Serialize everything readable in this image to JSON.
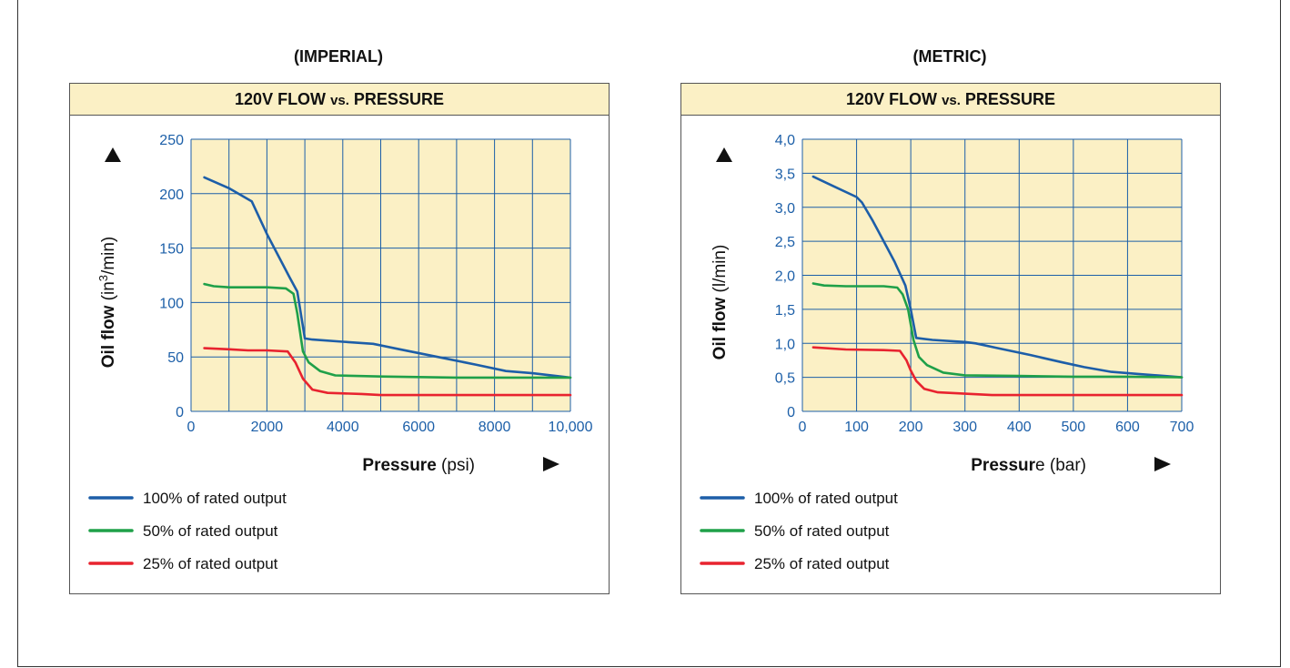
{
  "panels": [
    {
      "section_title": "(IMPERIAL)",
      "header_main": "120V FLOW ",
      "header_vs": "vs.",
      "header_end": " PRESSURE",
      "ylabel_bold": "Oil flow",
      "ylabel_unit_pre": " (in",
      "ylabel_unit_sup": "3",
      "ylabel_unit_post": "/min)",
      "xlabel_bold": "Pressure",
      "xlabel_unit": " (psi)",
      "x_ticks": [
        "0",
        "2000",
        "4000",
        "6000",
        "8000",
        "10,000"
      ],
      "y_ticks": [
        "0",
        "50",
        "100",
        "150",
        "200",
        "250"
      ],
      "legend": [
        "100% of rated output",
        "50% of rated output",
        "25% of rated output"
      ]
    },
    {
      "section_title": "(METRIC)",
      "header_main": "120V FLOW ",
      "header_vs": "vs.",
      "header_end": " PRESSURE",
      "ylabel_bold": "Oil flow",
      "ylabel_unit_pre": " (l/min)",
      "ylabel_unit_sup": "",
      "ylabel_unit_post": "",
      "xlabel_bold": "Pressur",
      "xlabel_unit": "e (bar)",
      "x_ticks": [
        "0",
        "100",
        "200",
        "300",
        "400",
        "500",
        "600",
        "700"
      ],
      "y_ticks": [
        "0",
        "0,5",
        "1,0",
        "1,5",
        "2,0",
        "2,5",
        "3,0",
        "3,5",
        "4,0"
      ],
      "legend": [
        "100% of rated output",
        "50% of rated output",
        "25% of rated output"
      ]
    }
  ],
  "colors": {
    "plot_bg": "#fbf0c5",
    "grid": "#1c5fa8",
    "series": [
      "#1d5ea8",
      "#1fa049",
      "#e8232f"
    ]
  },
  "chart_data": [
    {
      "type": "line",
      "title": "120V FLOW vs. PRESSURE",
      "xlabel": "Pressure (psi)",
      "ylabel": "Oil flow (in3/min)",
      "xlim": [
        0,
        10000
      ],
      "ylim": [
        0,
        250
      ],
      "grid": true,
      "legend_position": "bottom-left",
      "series": [
        {
          "name": "100% of rated output",
          "x": [
            350,
            1000,
            1600,
            2000,
            2300,
            2600,
            2800,
            3000,
            3200,
            4000,
            4800,
            5500,
            6500,
            7500,
            8300,
            9000,
            10000
          ],
          "y": [
            215,
            205,
            193,
            163,
            143,
            123,
            110,
            67,
            66,
            64,
            62,
            57,
            50,
            43,
            37,
            35,
            31
          ]
        },
        {
          "name": "50% of rated output",
          "x": [
            350,
            600,
            1000,
            2000,
            2500,
            2700,
            2800,
            2950,
            3100,
            3400,
            3800,
            5000,
            7000,
            8500,
            10000
          ],
          "y": [
            117,
            115,
            114,
            114,
            113,
            108,
            90,
            55,
            45,
            37,
            33,
            32,
            31,
            31,
            31
          ]
        },
        {
          "name": "25% of rated output",
          "x": [
            350,
            1000,
            1500,
            2000,
            2550,
            2750,
            2950,
            3200,
            3600,
            4500,
            5000,
            7000,
            10000
          ],
          "y": [
            58,
            57,
            56,
            56,
            55,
            45,
            30,
            20,
            17,
            16,
            15,
            15,
            15
          ]
        }
      ]
    },
    {
      "type": "line",
      "title": "120V FLOW vs. PRESSURE",
      "xlabel": "Pressure (bar)",
      "ylabel": "Oil flow (l/min)",
      "xlim": [
        0,
        700
      ],
      "ylim": [
        0,
        4
      ],
      "grid": true,
      "legend_position": "bottom-left",
      "series": [
        {
          "name": "100% of rated output",
          "x": [
            20,
            60,
            100,
            110,
            130,
            150,
            170,
            190,
            200,
            210,
            240,
            300,
            320,
            360,
            420,
            480,
            520,
            570,
            620,
            700
          ],
          "y": [
            3.45,
            3.3,
            3.15,
            3.07,
            2.8,
            2.5,
            2.2,
            1.85,
            1.5,
            1.08,
            1.05,
            1.02,
            1.0,
            0.93,
            0.83,
            0.72,
            0.65,
            0.58,
            0.55,
            0.5
          ]
        },
        {
          "name": "50% of rated output",
          "x": [
            20,
            40,
            80,
            150,
            175,
            185,
            195,
            205,
            215,
            230,
            260,
            300,
            400,
            500,
            600,
            700
          ],
          "y": [
            1.88,
            1.85,
            1.84,
            1.84,
            1.82,
            1.72,
            1.5,
            1.05,
            0.8,
            0.68,
            0.57,
            0.53,
            0.52,
            0.51,
            0.51,
            0.5
          ]
        },
        {
          "name": "25% of rated output",
          "x": [
            20,
            80,
            150,
            180,
            192,
            200,
            210,
            225,
            250,
            300,
            350,
            400,
            500,
            600,
            700
          ],
          "y": [
            0.94,
            0.91,
            0.9,
            0.89,
            0.75,
            0.6,
            0.45,
            0.33,
            0.28,
            0.26,
            0.24,
            0.24,
            0.24,
            0.24,
            0.24
          ]
        }
      ]
    }
  ]
}
